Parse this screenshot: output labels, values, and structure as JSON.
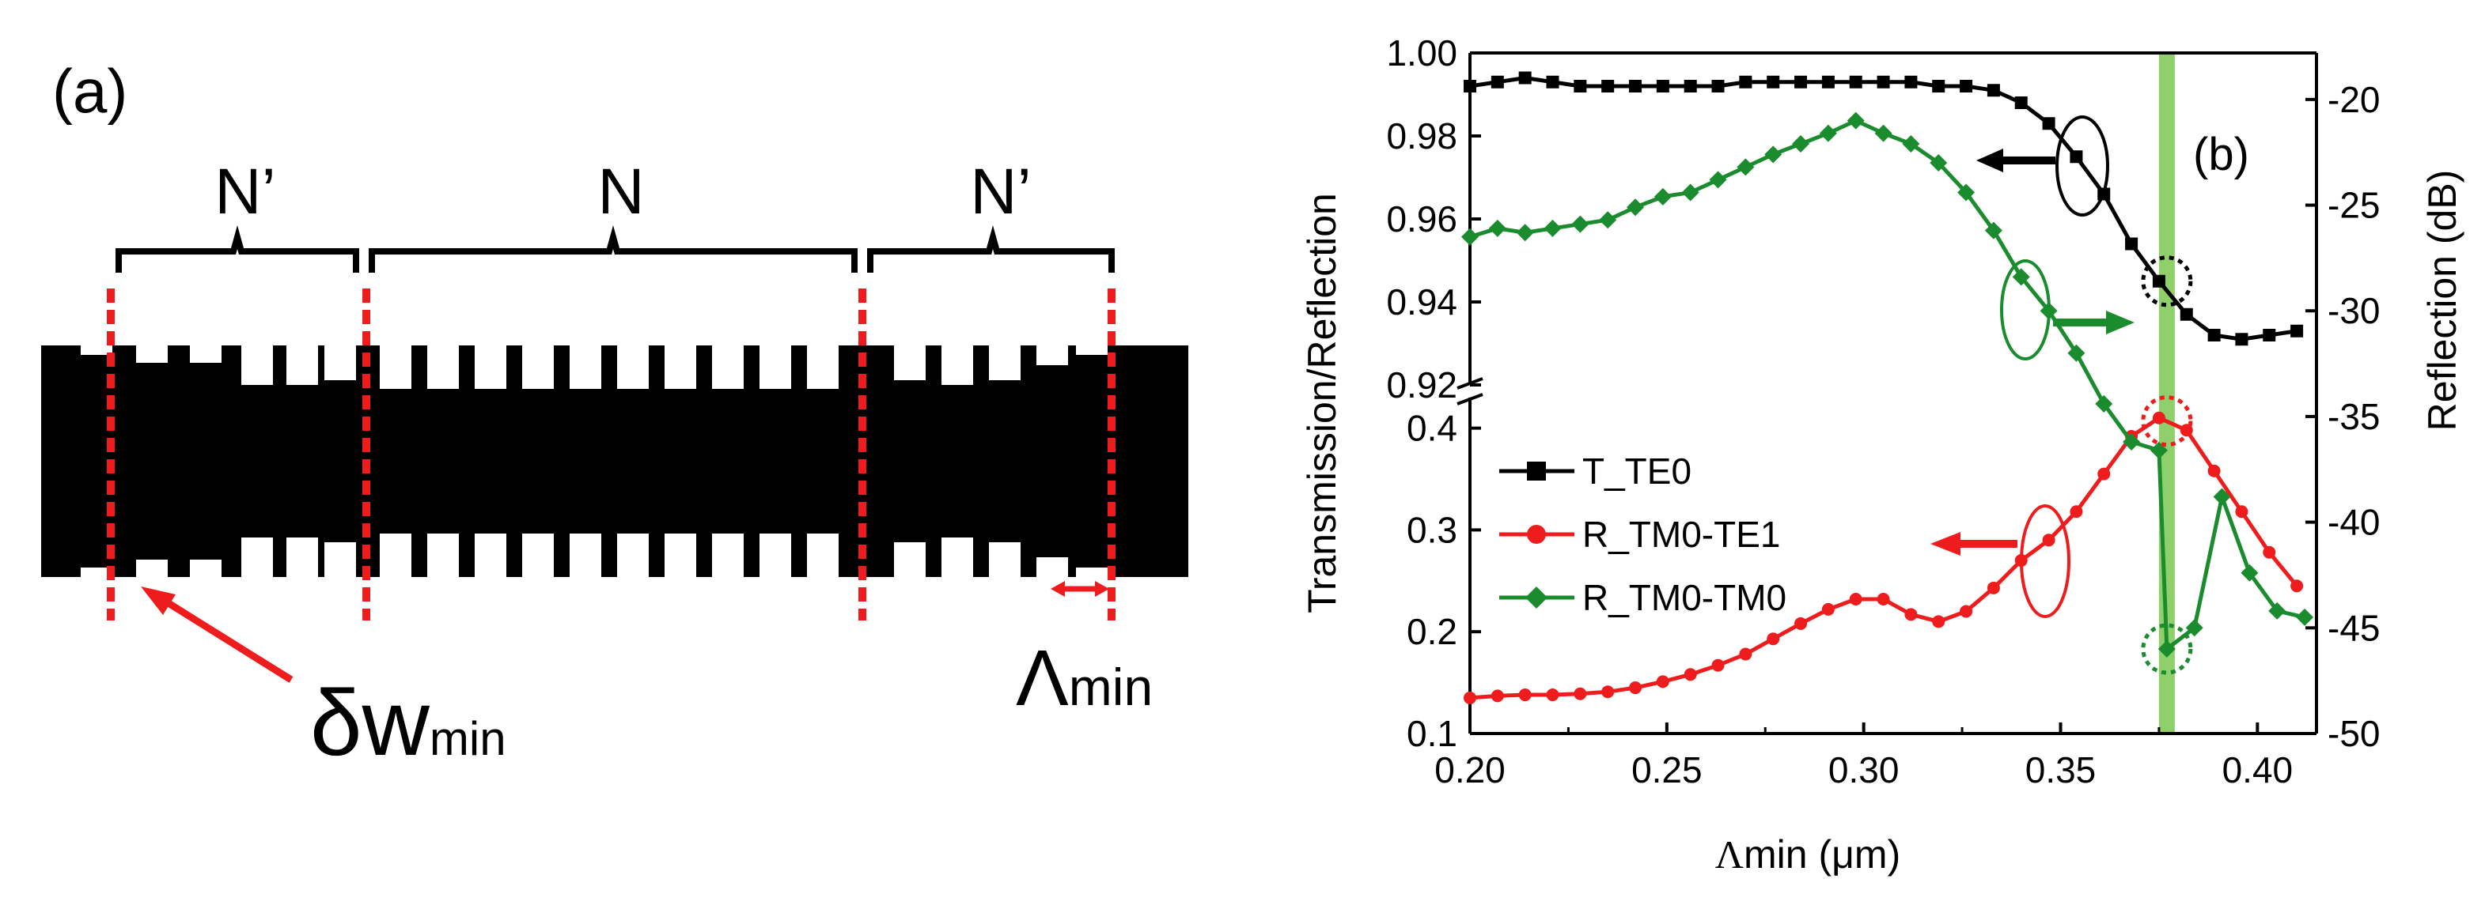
{
  "panel_a": {
    "label": "(a)",
    "section_left": "N’",
    "section_center": "N",
    "section_right": "N’",
    "delta_symbol": "δw",
    "delta_sub": "min",
    "lambda_symbol": "Λ",
    "lambda_sub": "min",
    "colors": {
      "waveguide": "#000000",
      "marker": "#ee1c1c"
    }
  },
  "chart_data": {
    "type": "line",
    "panel_label": "(b)",
    "xlabel_symbol": "Λ",
    "xlabel_rest": "min (μm)",
    "ylabel_left": "Transmission/Reflection",
    "ylabel_right": "Reflection (dB)",
    "xlim": [
      0.2,
      0.415
    ],
    "x_ticks": [
      "0.20",
      "0.25",
      "0.30",
      "0.35",
      "0.40"
    ],
    "x_tick_values": [
      0.2,
      0.25,
      0.3,
      0.35,
      0.4
    ],
    "ylim_upper": [
      0.92,
      1.0
    ],
    "ylim_lower": [
      0.1,
      0.43
    ],
    "y_ticks_upper": [
      "0.92",
      "0.94",
      "0.96",
      "0.98",
      "1.00"
    ],
    "y_tick_values_upper": [
      0.92,
      0.94,
      0.96,
      0.98,
      1.0
    ],
    "y_ticks_lower": [
      "0.1",
      "0.2",
      "0.3",
      "0.4"
    ],
    "y_tick_values_lower": [
      0.1,
      0.2,
      0.3,
      0.4
    ],
    "ylim_right_db": [
      -50,
      -17.8
    ],
    "y_ticks_right": [
      "-20",
      "-25",
      "-30",
      "-35",
      "-40",
      "-45",
      "-50"
    ],
    "y_tick_values_right": [
      -20,
      -25,
      -30,
      -35,
      -40,
      -45,
      -50
    ],
    "highlight_x": 0.377,
    "highlight_color": "#8fd06a",
    "series": [
      {
        "name": "T_TE0",
        "axis": "left",
        "color": "#000000",
        "marker": "square",
        "x": [
          0.2,
          0.207,
          0.214,
          0.221,
          0.228,
          0.235,
          0.242,
          0.249,
          0.256,
          0.263,
          0.27,
          0.277,
          0.284,
          0.291,
          0.298,
          0.305,
          0.312,
          0.319,
          0.326,
          0.333,
          0.34,
          0.347,
          0.354,
          0.361,
          0.368,
          0.375,
          0.382,
          0.389,
          0.396,
          0.403,
          0.41
        ],
        "y": [
          0.992,
          0.993,
          0.994,
          0.993,
          0.992,
          0.992,
          0.992,
          0.992,
          0.992,
          0.992,
          0.993,
          0.993,
          0.993,
          0.993,
          0.993,
          0.993,
          0.993,
          0.992,
          0.992,
          0.991,
          0.988,
          0.983,
          0.975,
          0.966,
          0.954,
          0.945,
          0.937,
          0.932,
          0.931,
          0.932,
          0.933
        ]
      },
      {
        "name": "R_TM0-TE1",
        "axis": "left",
        "color": "#ee1c1c",
        "marker": "circle",
        "x": [
          0.2,
          0.207,
          0.214,
          0.221,
          0.228,
          0.235,
          0.242,
          0.249,
          0.256,
          0.263,
          0.27,
          0.277,
          0.284,
          0.291,
          0.298,
          0.305,
          0.312,
          0.319,
          0.326,
          0.333,
          0.34,
          0.347,
          0.354,
          0.361,
          0.368,
          0.375,
          0.382,
          0.389,
          0.396,
          0.403,
          0.41
        ],
        "y": [
          0.135,
          0.137,
          0.138,
          0.138,
          0.139,
          0.141,
          0.145,
          0.151,
          0.158,
          0.167,
          0.178,
          0.193,
          0.208,
          0.222,
          0.232,
          0.232,
          0.217,
          0.21,
          0.22,
          0.243,
          0.27,
          0.29,
          0.318,
          0.355,
          0.392,
          0.41,
          0.398,
          0.358,
          0.318,
          0.278,
          0.245
        ]
      },
      {
        "name": "R_TM0-TM0",
        "axis": "right",
        "color": "#1a8c2e",
        "marker": "diamond",
        "x": [
          0.2,
          0.207,
          0.214,
          0.221,
          0.228,
          0.235,
          0.242,
          0.249,
          0.256,
          0.263,
          0.27,
          0.277,
          0.284,
          0.291,
          0.298,
          0.305,
          0.312,
          0.319,
          0.326,
          0.333,
          0.34,
          0.347,
          0.354,
          0.361,
          0.368,
          0.375,
          0.377,
          0.384,
          0.391,
          0.398,
          0.405,
          0.412
        ],
        "y": [
          -26.5,
          -26.1,
          -26.3,
          -26.1,
          -25.9,
          -25.7,
          -25.1,
          -24.6,
          -24.4,
          -23.8,
          -23.2,
          -22.6,
          -22.1,
          -21.6,
          -21.0,
          -21.6,
          -22.1,
          -23.0,
          -24.4,
          -26.2,
          -28.4,
          -30.0,
          -32.0,
          -34.4,
          -36.2,
          -36.6,
          -46.0,
          -45.0,
          -38.8,
          -42.4,
          -44.2,
          -44.5
        ]
      }
    ],
    "legend": [
      "T_TE0",
      "R_TM0-TE1",
      "R_TM0-TM0"
    ]
  }
}
